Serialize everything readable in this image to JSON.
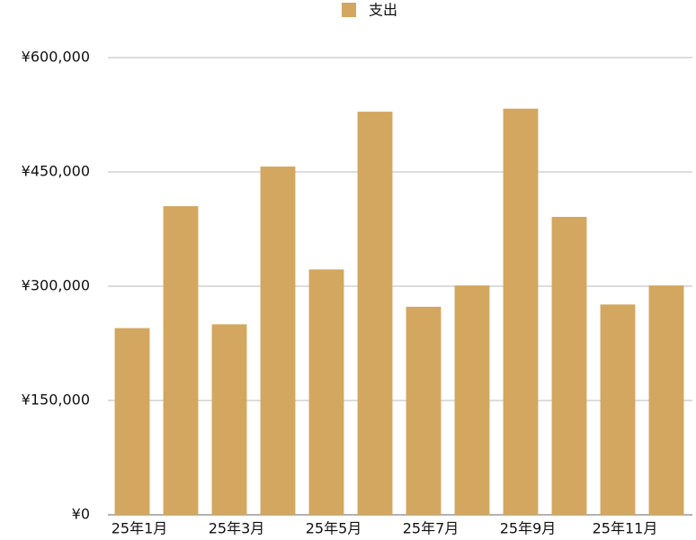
{
  "chart_data": {
    "type": "bar",
    "series": [
      {
        "name": "支出",
        "color": "#d3a75f",
        "values": [
          245000,
          405000,
          250000,
          457000,
          322000,
          529000,
          273000,
          301000,
          533000,
          391000,
          276000,
          301000
        ]
      }
    ],
    "categories": [
      "25年1月",
      null,
      "25年3月",
      null,
      "25年5月",
      null,
      "25年7月",
      null,
      "25年9月",
      null,
      "25年11月",
      null
    ],
    "ylim": [
      0,
      600000
    ],
    "yticks": [
      {
        "value": 0,
        "label": "¥0"
      },
      {
        "value": 150000,
        "label": "¥150,000"
      },
      {
        "value": 300000,
        "label": "¥300,000"
      },
      {
        "value": 450000,
        "label": "¥450,000"
      },
      {
        "value": 600000,
        "label": "¥600,000"
      }
    ],
    "grid": true,
    "legend": "top"
  }
}
